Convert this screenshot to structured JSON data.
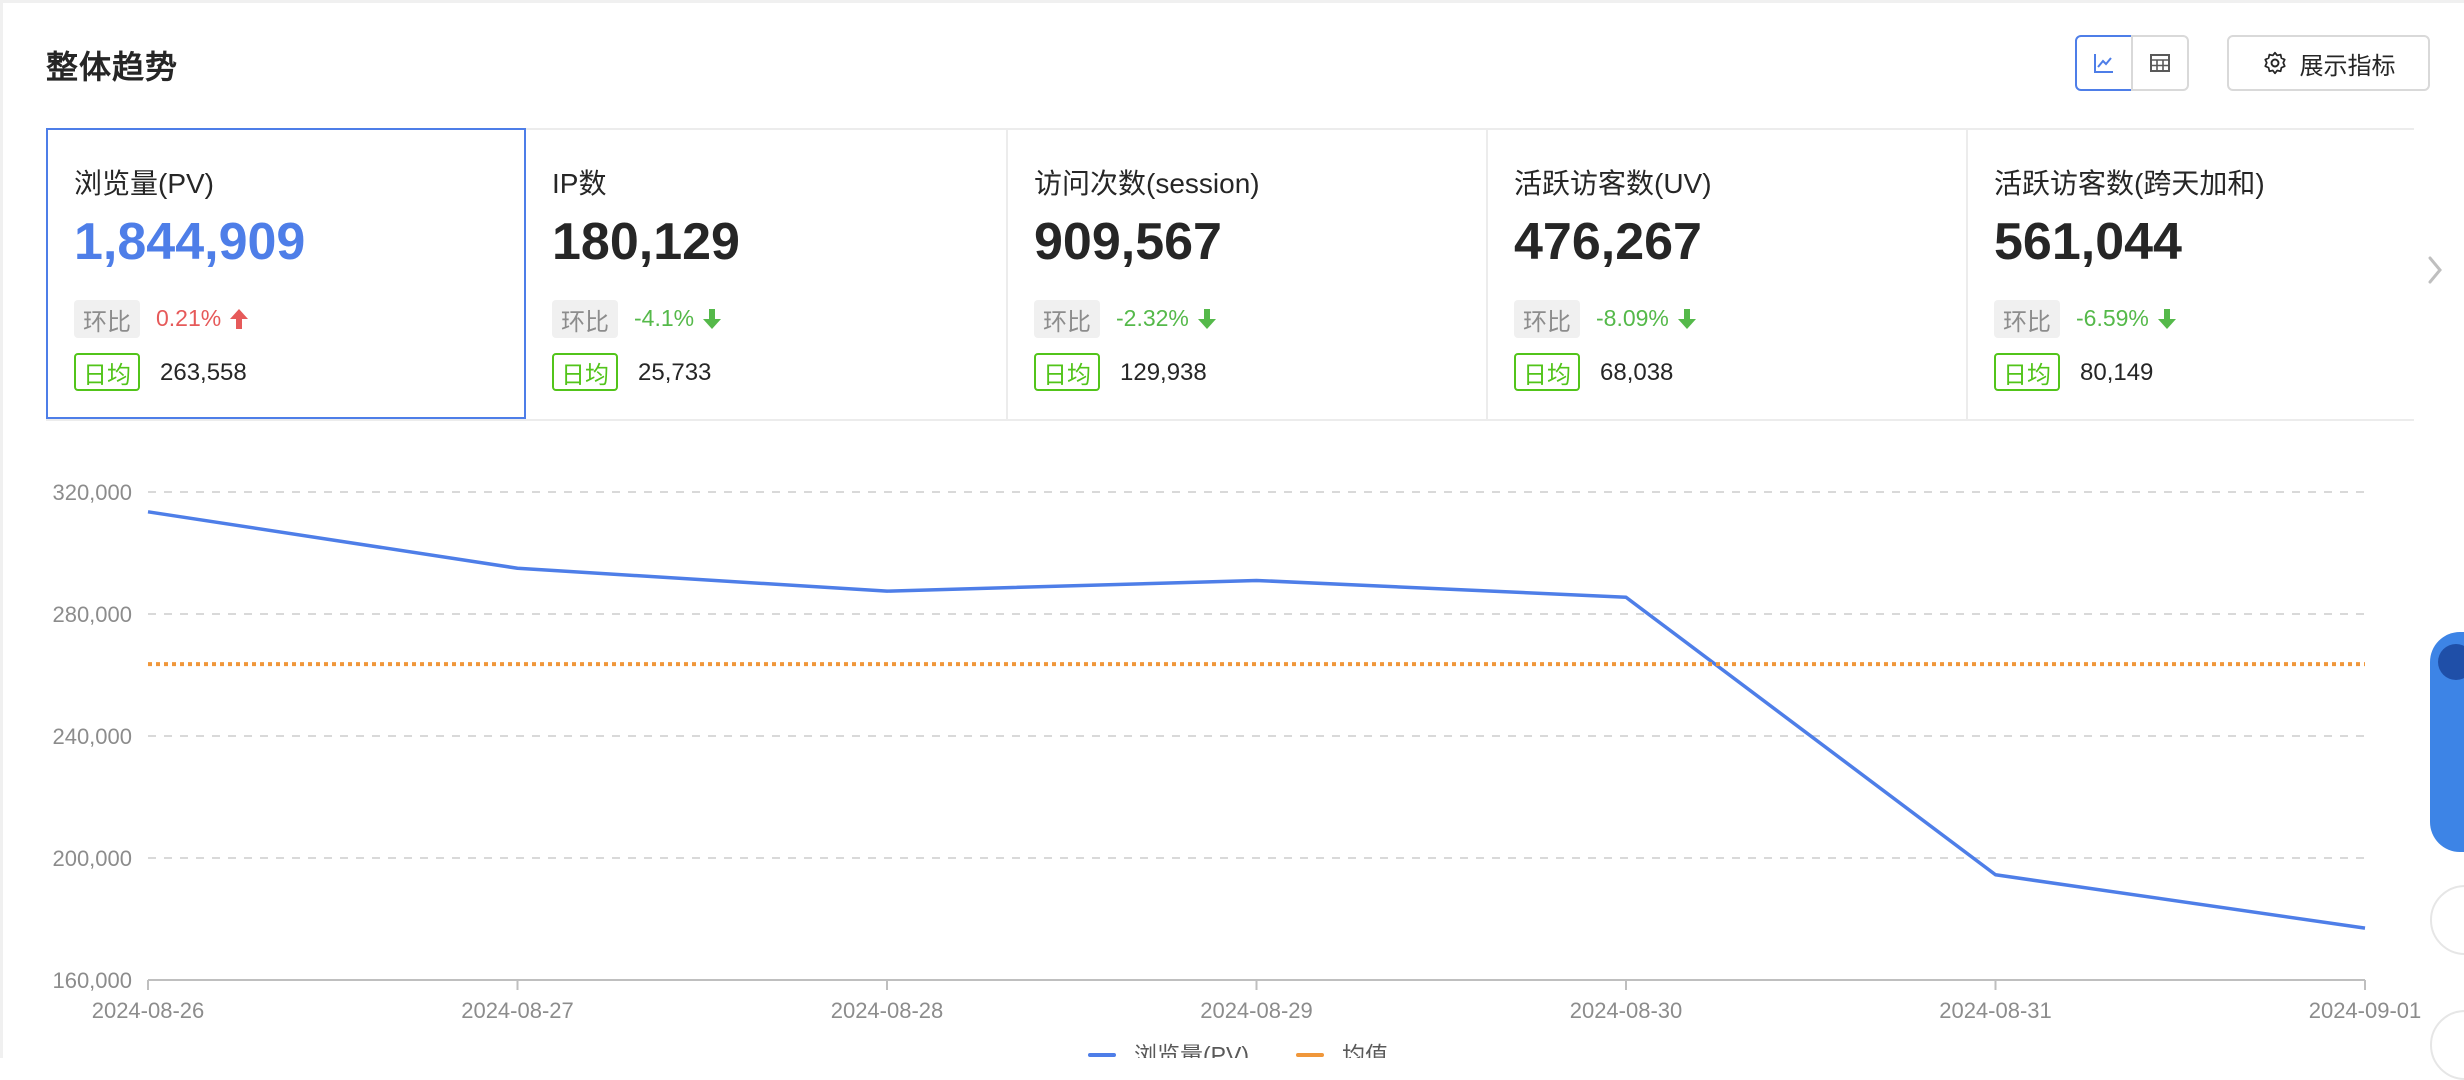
{
  "header": {
    "title": "整体趋势",
    "view_toggle": {
      "chart_icon": "line-chart-icon",
      "table_icon": "table-icon",
      "active": "chart"
    },
    "metrics_button_label": "展示指标",
    "metrics_button_icon": "gear-icon"
  },
  "cards": [
    {
      "name": "浏览量(PV)",
      "value": "1,844,909",
      "mom_label": "环比",
      "mom_value": "0.21%",
      "mom_dir": "up",
      "avg_label": "日均",
      "avg_value": "263,558",
      "active": true
    },
    {
      "name": "IP数",
      "value": "180,129",
      "mom_label": "环比",
      "mom_value": "-4.1%",
      "mom_dir": "down",
      "avg_label": "日均",
      "avg_value": "25,733",
      "active": false
    },
    {
      "name": "访问次数(session)",
      "value": "909,567",
      "mom_label": "环比",
      "mom_value": "-2.32%",
      "mom_dir": "down",
      "avg_label": "日均",
      "avg_value": "129,938",
      "active": false
    },
    {
      "name": "活跃访客数(UV)",
      "value": "476,267",
      "mom_label": "环比",
      "mom_value": "-8.09%",
      "mom_dir": "down",
      "avg_label": "日均",
      "avg_value": "68,038",
      "active": false
    },
    {
      "name": "活跃访客数(跨天加和)",
      "value": "561,044",
      "mom_label": "环比",
      "mom_value": "-6.59%",
      "mom_dir": "down",
      "avg_label": "日均",
      "avg_value": "80,149",
      "active": false
    }
  ],
  "colors": {
    "accent": "#4e7ee8",
    "up": "#e65a5a",
    "down": "#55b94a",
    "avg_tag": "#52c41a",
    "mean_line": "#f0973a"
  },
  "chart_data": {
    "type": "line",
    "x": [
      "2024-08-26",
      "2024-08-27",
      "2024-08-28",
      "2024-08-29",
      "2024-08-30",
      "2024-08-31",
      "2024-09-01"
    ],
    "series": [
      {
        "name": "浏览量(PV)",
        "values": [
          313500,
          295000,
          287500,
          291000,
          285500,
          194500,
          177000
        ],
        "color": "#4e7ee8"
      },
      {
        "name": "均值",
        "values": [
          263558,
          263558,
          263558,
          263558,
          263558,
          263558,
          263558
        ],
        "color": "#f0973a",
        "style": "dotted"
      }
    ],
    "yticks": [
      "160,000",
      "200,000",
      "240,000",
      "280,000",
      "320,000"
    ],
    "ylim": [
      160000,
      320000
    ],
    "grid": true,
    "legend": "bottom-center"
  }
}
